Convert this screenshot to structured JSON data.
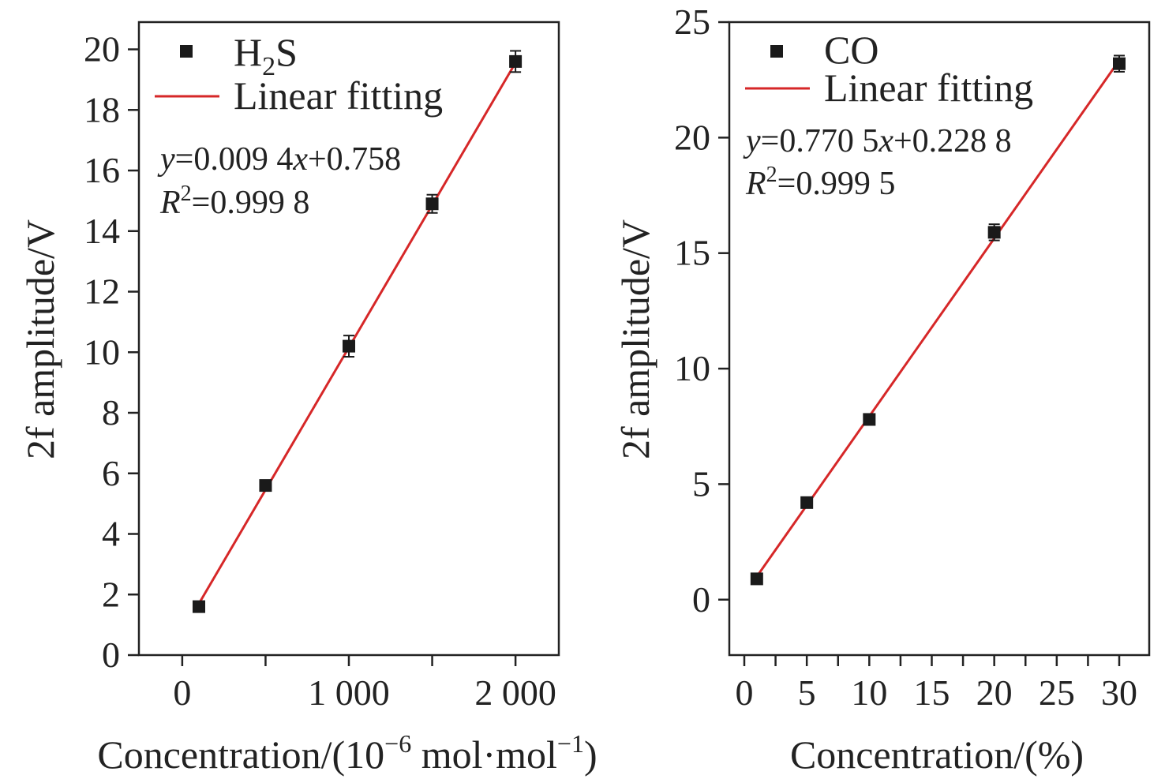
{
  "colors": {
    "marker": "#1a1a1a",
    "fit_line": "#d62728",
    "axis": "#222222"
  },
  "chart_data": [
    {
      "type": "scatter",
      "name": "h2s-panel",
      "xlabel_main": "Concentration/(10",
      "xlabel_sup1": "−6",
      "xlabel_mid": " mol·mol",
      "xlabel_sup2": "−1",
      "xlabel_end": ")",
      "ylabel": "2f amplitude/V",
      "xlim": [
        -260,
        2260
      ],
      "ylim": [
        0,
        20.9
      ],
      "xticks": [
        0,
        1000,
        2000
      ],
      "xtick_labels": [
        "0",
        "1 000",
        "2 000"
      ],
      "xticks_minor": [
        500,
        1500
      ],
      "yticks": [
        0,
        2,
        4,
        6,
        8,
        10,
        12,
        14,
        16,
        18,
        20
      ],
      "ytick_labels": [
        "0",
        "2",
        "4",
        "6",
        "8",
        "10",
        "12",
        "14",
        "16",
        "18",
        "20"
      ],
      "x": [
        100,
        500,
        1000,
        1500,
        2000
      ],
      "y": [
        1.6,
        5.6,
        10.2,
        14.9,
        19.6
      ],
      "err": [
        0.1,
        0.15,
        0.35,
        0.3,
        0.35
      ],
      "fit": {
        "x": [
          100,
          2000
        ],
        "slope": 0.0094,
        "intercept": 0.758
      },
      "legend": {
        "marker_label_main": "H",
        "marker_label_sub": "2",
        "marker_label_end": "S",
        "line_label": "Linear fitting"
      },
      "equation": {
        "y_var": "y",
        "eq_part": "=0.009 4",
        "x_var": "x",
        "eq_end": "+0.758",
        "r_var": "R",
        "r_sup": "2",
        "r_val": "=0.999 8"
      }
    },
    {
      "type": "scatter",
      "name": "co-panel",
      "xlabel": "Concentration/(%)",
      "ylabel": "2f amplitude/V",
      "xlim": [
        -1.2,
        32.4
      ],
      "ylim": [
        -2.4,
        25
      ],
      "xticks": [
        0,
        5,
        10,
        15,
        20,
        25,
        30
      ],
      "xtick_labels": [
        "0",
        "5",
        "10",
        "15",
        "20",
        "25",
        "30"
      ],
      "xticks_minor": [
        2.5,
        7.5,
        12.5,
        17.5,
        22.5,
        27.5
      ],
      "yticks": [
        0,
        5,
        10,
        15,
        20,
        25
      ],
      "ytick_labels": [
        "0",
        "5",
        "10",
        "15",
        "20",
        "25"
      ],
      "x": [
        1,
        5,
        10,
        20,
        30
      ],
      "y": [
        0.9,
        4.2,
        7.8,
        15.9,
        23.2
      ],
      "err": [
        0.1,
        0.2,
        0.2,
        0.35,
        0.35
      ],
      "fit": {
        "x": [
          1,
          30
        ],
        "slope": 0.7705,
        "intercept": 0.2288
      },
      "legend": {
        "marker_label": "CO",
        "line_label": "Linear fitting"
      },
      "equation": {
        "y_var": "y",
        "eq_part": "=0.770 5",
        "x_var": "x",
        "eq_end": "+0.228 8",
        "r_var": "R",
        "r_sup": "2",
        "r_val": "=0.999 5"
      }
    }
  ]
}
